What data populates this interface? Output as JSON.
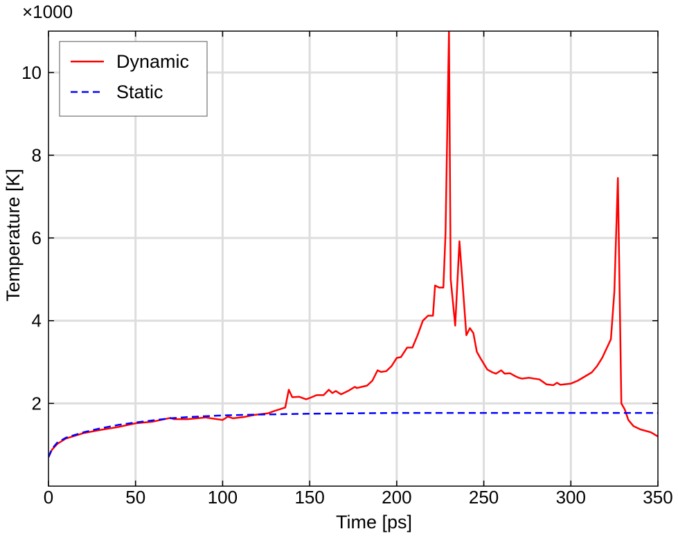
{
  "chart_data": {
    "type": "line",
    "title": "",
    "xlabel": "Time [ps]",
    "ylabel": "Temperature [K]",
    "y_multiplier_label": "×1000",
    "xlim": [
      0,
      350
    ],
    "ylim": [
      0,
      11
    ],
    "xticks": [
      0,
      50,
      100,
      150,
      200,
      250,
      300,
      350
    ],
    "yticks": [
      2,
      4,
      6,
      8,
      10
    ],
    "grid": true,
    "legend_position": "top-left",
    "series": [
      {
        "name": "Dynamic",
        "color": "#ff0000",
        "style": "solid",
        "x": [
          0,
          2,
          5,
          10,
          20,
          30,
          40,
          50,
          60,
          70,
          72,
          80,
          90,
          95,
          100,
          103,
          106,
          112,
          118,
          122,
          126,
          130,
          136,
          138,
          140,
          144,
          148,
          150,
          154,
          158,
          161,
          163,
          165,
          168,
          172,
          176,
          177,
          180,
          183,
          186,
          189,
          191,
          194,
          197,
          200,
          202.4,
          206,
          209,
          212,
          215,
          218,
          220.8,
          222,
          224.4,
          226.8,
          228,
          230,
          231,
          233.6,
          236,
          238,
          240,
          242,
          244,
          246,
          248,
          252,
          255,
          257,
          260,
          262,
          265,
          268,
          270,
          272,
          276,
          282,
          286,
          290,
          292,
          294,
          300,
          304,
          308,
          312,
          315,
          318,
          323,
          325,
          327,
          329,
          331,
          333,
          336,
          340,
          346,
          350
        ],
        "y": [
          0.7,
          0.88,
          1.02,
          1.15,
          1.28,
          1.36,
          1.43,
          1.52,
          1.56,
          1.65,
          1.62,
          1.62,
          1.66,
          1.63,
          1.6,
          1.68,
          1.64,
          1.67,
          1.72,
          1.74,
          1.76,
          1.82,
          1.9,
          2.33,
          2.15,
          2.16,
          2.1,
          2.13,
          2.2,
          2.2,
          2.33,
          2.25,
          2.3,
          2.22,
          2.3,
          2.4,
          2.37,
          2.4,
          2.43,
          2.55,
          2.8,
          2.76,
          2.78,
          2.9,
          3.1,
          3.12,
          3.35,
          3.35,
          3.65,
          4.0,
          4.12,
          4.12,
          4.85,
          4.8,
          4.8,
          6.1,
          11.0,
          5.0,
          3.88,
          5.92,
          4.8,
          3.65,
          3.82,
          3.7,
          3.25,
          3.1,
          2.82,
          2.75,
          2.72,
          2.8,
          2.72,
          2.73,
          2.66,
          2.62,
          2.6,
          2.62,
          2.58,
          2.46,
          2.44,
          2.5,
          2.45,
          2.48,
          2.55,
          2.65,
          2.75,
          2.9,
          3.1,
          3.55,
          4.7,
          7.45,
          2.0,
          1.85,
          1.6,
          1.45,
          1.37,
          1.3,
          1.2
        ]
      },
      {
        "name": "Static",
        "color": "#0000ff",
        "style": "dashed",
        "x": [
          0,
          2,
          5,
          10,
          20,
          30,
          40,
          50,
          60,
          70,
          80,
          90,
          100,
          120,
          150,
          200,
          250,
          300,
          350
        ],
        "y": [
          0.7,
          0.9,
          1.05,
          1.17,
          1.3,
          1.4,
          1.48,
          1.54,
          1.59,
          1.64,
          1.67,
          1.69,
          1.71,
          1.73,
          1.75,
          1.77,
          1.77,
          1.77,
          1.77
        ]
      }
    ]
  }
}
